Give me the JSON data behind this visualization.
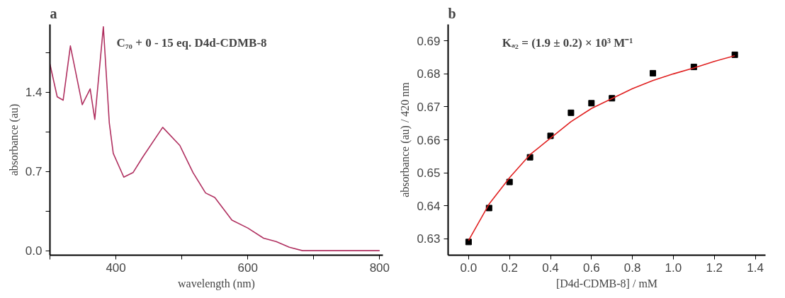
{
  "chart_data": [
    {
      "type": "line",
      "title": "a",
      "xlabel": "wavelength (nm)",
      "ylabel": "absorbance (au)",
      "annotations": [
        "C₇₀ + 0 - 15 eq. D4d-CDMB-8"
      ],
      "xlim": [
        300,
        805
      ],
      "ylim": [
        -0.04,
        2.0
      ],
      "xticks": [
        {
          "value": 300,
          "label": null
        },
        400,
        {
          "value": 500,
          "label": null
        },
        600,
        {
          "value": 700,
          "label": null
        },
        800
      ],
      "yticks": [
        {
          "value": 0,
          "label": "0.0"
        },
        {
          "value": 0.35,
          "label": null
        },
        0.7,
        {
          "value": 1.05,
          "label": null
        },
        1.4,
        {
          "value": 1.75,
          "label": null
        }
      ],
      "grid": false,
      "line_style": "solid",
      "series": [
        {
          "color": "#b03060",
          "x": [
            300,
            311,
            320,
            331,
            349,
            361,
            368,
            381,
            390,
            396,
            412,
            426,
            441,
            471,
            497,
            517,
            536,
            550,
            576,
            600,
            624,
            643,
            663,
            683,
            800
          ],
          "values": [
            1.65,
            1.36,
            1.33,
            1.81,
            1.29,
            1.43,
            1.16,
            1.98,
            1.13,
            0.86,
            0.65,
            0.69,
            0.83,
            1.09,
            0.93,
            0.69,
            0.51,
            0.47,
            0.27,
            0.2,
            0.11,
            0.08,
            0.03,
            0.0,
            0.0
          ]
        }
      ]
    },
    {
      "type": "scatter",
      "title": "b",
      "xlabel": "[D4d-CDMB-8] / mM",
      "ylabel": "absorbance (au) / 420 nm",
      "annotations": [
        "Kₐ₂ = (1.9 ± 0.2) × 10³ M⁻¹"
      ],
      "xlim": [
        -0.1,
        1.45
      ],
      "ylim": [
        0.625,
        0.695
      ],
      "xticks": [
        {
          "value": 0,
          "label": "0.0"
        },
        {
          "value": 0.2,
          "label": "0.2"
        },
        {
          "value": 0.4,
          "label": "0.4"
        },
        {
          "value": 0.6,
          "label": "0.6"
        },
        {
          "value": 0.8,
          "label": "0.8"
        },
        {
          "value": 1.0,
          "label": "1.0"
        },
        {
          "value": 1.2,
          "label": "1.2"
        },
        {
          "value": 1.4,
          "label": "1.4"
        }
      ],
      "yticks": [
        0.63,
        0.64,
        0.65,
        0.66,
        0.67,
        0.68,
        0.69
      ],
      "grid": false,
      "series": [
        {
          "type": "scatter",
          "marker": "square",
          "color": "#000000",
          "x": [
            0,
            0.1,
            0.2,
            0.3,
            0.4,
            0.5,
            0.6,
            0.7,
            0.9,
            1.1,
            1.3
          ],
          "values": [
            0.629,
            0.6393,
            0.6472,
            0.6547,
            0.6612,
            0.6682,
            0.6711,
            0.6726,
            0.6802,
            0.6821,
            0.6858
          ]
        },
        {
          "type": "line",
          "color": "#e02020",
          "x": [
            0,
            0.1,
            0.2,
            0.3,
            0.4,
            0.5,
            0.6,
            0.7,
            0.8,
            0.9,
            1.0,
            1.1,
            1.2,
            1.3
          ],
          "values": [
            0.6295,
            0.6405,
            0.6485,
            0.6555,
            0.6605,
            0.6655,
            0.6695,
            0.6725,
            0.6755,
            0.678,
            0.68,
            0.6818,
            0.6838,
            0.6855
          ]
        }
      ]
    }
  ]
}
